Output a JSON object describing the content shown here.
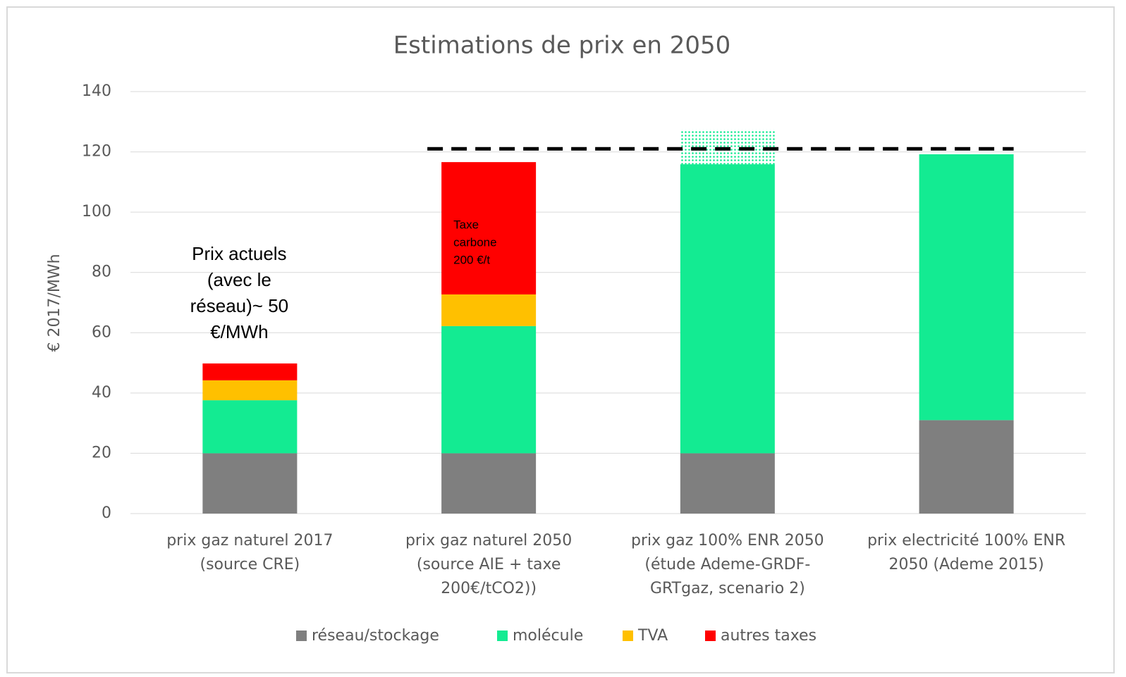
{
  "chart_data": {
    "type": "stacked_bar",
    "title": "Estimations de prix en 2050",
    "y_label": "€ 2017/MWh",
    "categories": [
      [
        "prix gaz naturel 2017",
        "(source CRE)"
      ],
      [
        "prix gaz naturel 2050",
        "(source AIE + taxe",
        "200€/tCO2))"
      ],
      [
        "prix gaz 100% ENR 2050",
        "(étude Ademe-GRDF-",
        "GRTgaz, scenario 2)"
      ],
      [
        "prix electricité 100% ENR",
        "2050 (Ademe 2015)"
      ]
    ],
    "series": [
      {
        "name": "réseau/stockage",
        "color": "#7f7f7f",
        "values": [
          20,
          20,
          20,
          31
        ]
      },
      {
        "name": "molécule",
        "color": "#13eb92",
        "values": [
          17.6,
          42.2,
          95.9,
          88.2
        ]
      },
      {
        "name": "TVA",
        "color": "#ffc000",
        "values": [
          6.6,
          10.5,
          null,
          null
        ]
      },
      {
        "name": "autres taxes",
        "color": "#ff0000",
        "values": [
          5.6,
          43.9,
          null,
          null
        ]
      }
    ],
    "hatched_values": [
      null,
      null,
      11.5,
      null
    ],
    "hatched_color": "#13eb92",
    "reference_line": 121,
    "annotations": [
      [
        "Prix actuels",
        "(avec le",
        "réseau)~ 50",
        "€/MWh"
      ],
      [
        "Taxe",
        "carbone",
        "200 €/t"
      ]
    ],
    "ylim": [
      0,
      140
    ],
    "yticks": [
      0,
      20,
      40,
      60,
      80,
      100,
      120,
      140
    ],
    "grid": true,
    "legend": "bottom"
  }
}
